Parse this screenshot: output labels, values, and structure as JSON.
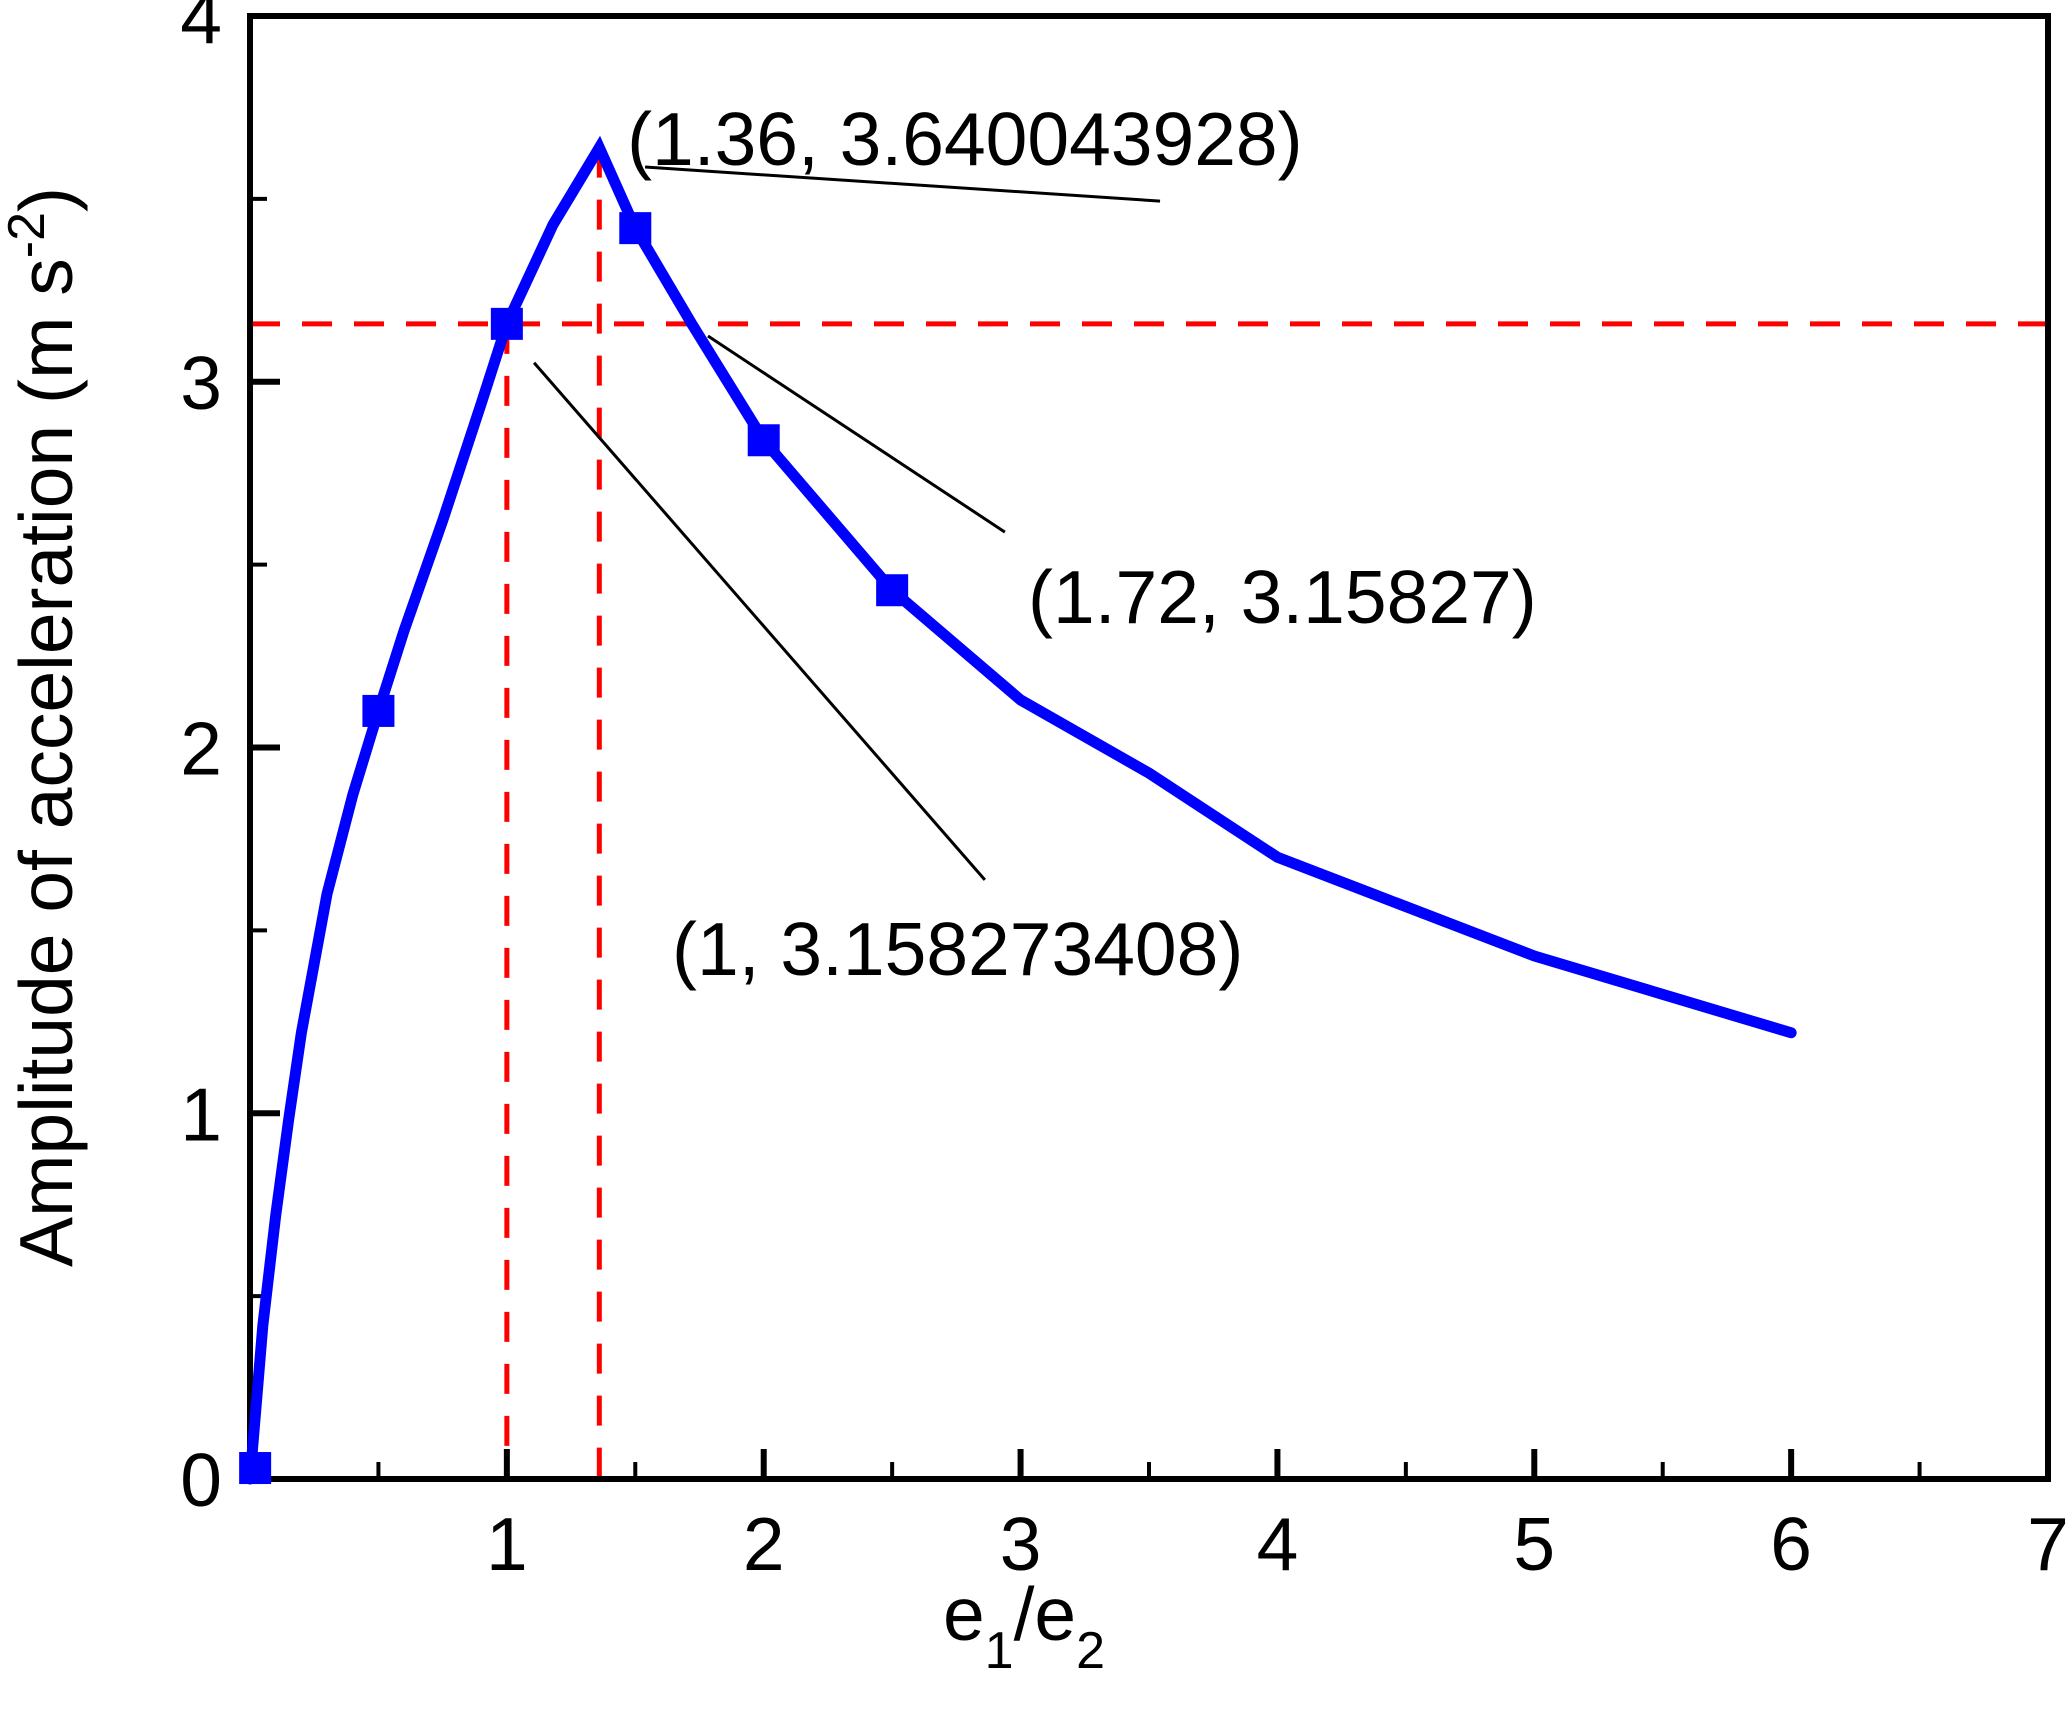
{
  "page": {
    "background": "#ffffff"
  },
  "chart_data": {
    "type": "line",
    "title": "",
    "xlabel": "e1/e2",
    "ylabel": "Amplitude of acceleration (m s^-2)",
    "xlabel_parts": {
      "base1": "e",
      "sub1": "1",
      "slash": "/",
      "base2": "e",
      "sub2": "2"
    },
    "ylabel_parts": {
      "prefix": "Amplitude of acceleration (m s",
      "sup": "-2",
      "suffix": ")"
    },
    "xlim": [
      0,
      7
    ],
    "ylim": [
      0,
      4
    ],
    "grid": false,
    "legend": "none",
    "x_major_ticks": [
      1,
      2,
      3,
      4,
      5,
      6,
      7
    ],
    "x_major_tick_labels": [
      "1",
      "2",
      "3",
      "4",
      "5",
      "6",
      "7"
    ],
    "x_minor_ticks": [
      0.5,
      1.5,
      2.5,
      3.5,
      4.5,
      5.5,
      6.5
    ],
    "y_major_ticks": [
      0,
      1,
      2,
      3,
      4
    ],
    "y_major_tick_labels": [
      "0",
      "1",
      "2",
      "3",
      "4"
    ],
    "y_minor_ticks": [
      0.5,
      1.5,
      2.5,
      3.5
    ],
    "colors": {
      "series": "#0000ff",
      "reference": "#ff0000",
      "axis": "#000000"
    },
    "series": [
      {
        "name": "amplitude-of-acceleration",
        "color": "#0000ff",
        "points": [
          [
            0.0,
            0.0
          ],
          [
            0.05,
            0.42
          ],
          [
            0.1,
            0.72
          ],
          [
            0.15,
            0.98
          ],
          [
            0.2,
            1.22
          ],
          [
            0.3,
            1.6
          ],
          [
            0.4,
            1.87
          ],
          [
            0.5,
            2.1
          ],
          [
            0.6,
            2.32
          ],
          [
            0.75,
            2.62
          ],
          [
            0.9,
            2.94
          ],
          [
            1.0,
            3.158273408
          ],
          [
            1.18,
            3.43
          ],
          [
            1.36,
            3.640043928
          ],
          [
            1.5,
            3.42
          ],
          [
            1.72,
            3.158273408
          ],
          [
            2.0,
            2.84
          ],
          [
            2.5,
            2.43
          ],
          [
            3.0,
            2.13
          ],
          [
            3.5,
            1.93
          ],
          [
            4.0,
            1.7
          ],
          [
            5.0,
            1.43
          ],
          [
            6.0,
            1.22
          ]
        ],
        "marker_points": [
          [
            0.02,
            0.03
          ],
          [
            0.5,
            2.1
          ],
          [
            1.0,
            3.158273408
          ],
          [
            1.5,
            3.42
          ],
          [
            2.0,
            2.84
          ],
          [
            2.5,
            2.43
          ]
        ]
      }
    ],
    "reference_lines": {
      "horizontal_y": 3.158273408,
      "verticals": [
        {
          "x": 1.0,
          "y_top": 3.158273408
        },
        {
          "x": 1.36,
          "y_top": 3.640043928
        }
      ]
    },
    "annotations": [
      {
        "text": "(1.36, 3.640043928)",
        "x": 1.468,
        "y": 3.593
      },
      {
        "text": "(1.72, 3.15827)",
        "x": 3.029,
        "y": 2.34
      },
      {
        "text": "(1, 3.158273408)",
        "x": 1.643,
        "y": 1.378
      }
    ],
    "connectors": [
      {
        "x1": 1.538,
        "y1": 3.587,
        "x2": 3.543,
        "y2": 3.494
      },
      {
        "x1": 1.783,
        "y1": 3.125,
        "x2": 2.939,
        "y2": 2.589
      },
      {
        "x1": 1.106,
        "y1": 3.052,
        "x2": 2.861,
        "y2": 1.638
      }
    ]
  }
}
